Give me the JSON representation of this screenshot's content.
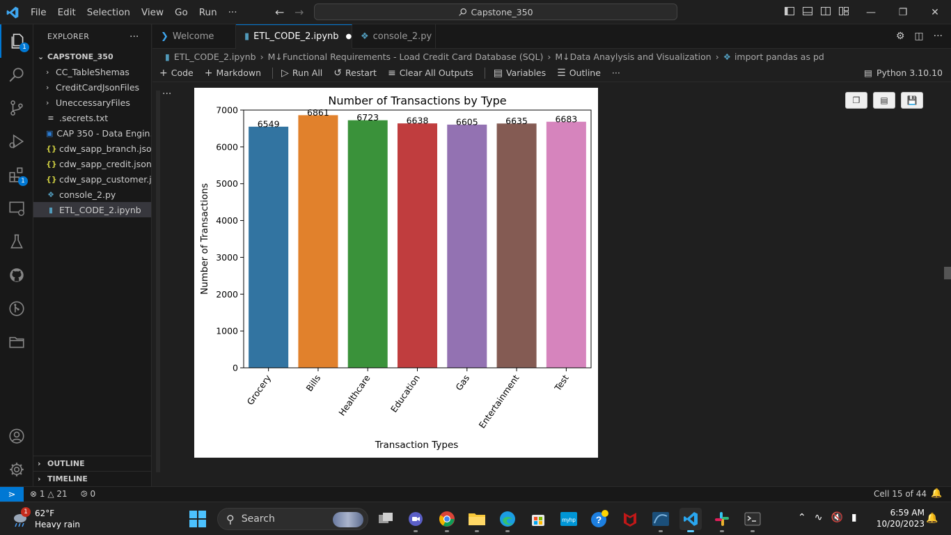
{
  "menu": [
    "File",
    "Edit",
    "Selection",
    "View",
    "Go",
    "Run",
    "···"
  ],
  "command_center": "Capstone_350",
  "explorer": {
    "title": "EXPLORER",
    "root": "CAPSTONE_350",
    "items": [
      {
        "label": "CC_TableShemas",
        "kind": "folder"
      },
      {
        "label": "CreditCardJsonFiles",
        "kind": "folder"
      },
      {
        "label": "UneccessaryFiles",
        "kind": "folder"
      },
      {
        "label": ".secrets.txt",
        "kind": "text"
      },
      {
        "label": "CAP 350 - Data Engin...",
        "kind": "doc"
      },
      {
        "label": "cdw_sapp_branch.json",
        "kind": "json"
      },
      {
        "label": "cdw_sapp_credit.json",
        "kind": "json"
      },
      {
        "label": "cdw_sapp_customer.j...",
        "kind": "json"
      },
      {
        "label": "console_2.py",
        "kind": "python"
      },
      {
        "label": "ETL_CODE_2.ipynb",
        "kind": "notebook"
      }
    ],
    "outline": "OUTLINE",
    "timeline": "TIMELINE"
  },
  "activity_badges": {
    "explorer": "1",
    "extensions": "1"
  },
  "tabs": [
    {
      "label": "Welcome",
      "icon": "vscode-icon"
    },
    {
      "label": "ETL_CODE_2.ipynb",
      "icon": "notebook-icon",
      "active": true,
      "modified": true
    },
    {
      "label": "console_2.py",
      "icon": "python-icon"
    }
  ],
  "breadcrumb": [
    "ETL_CODE_2.ipynb",
    "M↓Functional Requirements - Load Credit Card Database (SQL)",
    "M↓Data Anaylysis and Visualization",
    "import pandas as pd"
  ],
  "notebook_toolbar": {
    "code": "Code",
    "markdown": "Markdown",
    "run_all": "Run All",
    "restart": "Restart",
    "clear": "Clear All Outputs",
    "variables": "Variables",
    "outline": "Outline",
    "more": "···",
    "kernel": "Python 3.10.10"
  },
  "chart_data": {
    "type": "bar",
    "title": "Number of Transactions by Type",
    "xlabel": "Transaction Types",
    "ylabel": "Number of Transactions",
    "categories": [
      "Grocery",
      "Bills",
      "Healthcare",
      "Education",
      "Gas",
      "Entertainment",
      "Test"
    ],
    "values": [
      6549,
      6861,
      6723,
      6638,
      6605,
      6635,
      6683
    ],
    "colors": [
      "#3274a1",
      "#e1812c",
      "#3a923a",
      "#c03d3e",
      "#9372b2",
      "#845b53",
      "#d684bd"
    ],
    "ylim": [
      0,
      7000
    ],
    "yticks": [
      0,
      1000,
      2000,
      3000,
      4000,
      5000,
      6000,
      7000
    ],
    "grid": false
  },
  "status": {
    "errors": "1",
    "warnings": "21",
    "ports": "0",
    "cell": "Cell 15 of 44"
  },
  "taskbar": {
    "weather_temp": "62°F",
    "weather_desc": "Heavy rain",
    "weather_badge": "1",
    "search": "Search",
    "time": "6:59 AM",
    "date": "10/20/2023"
  }
}
